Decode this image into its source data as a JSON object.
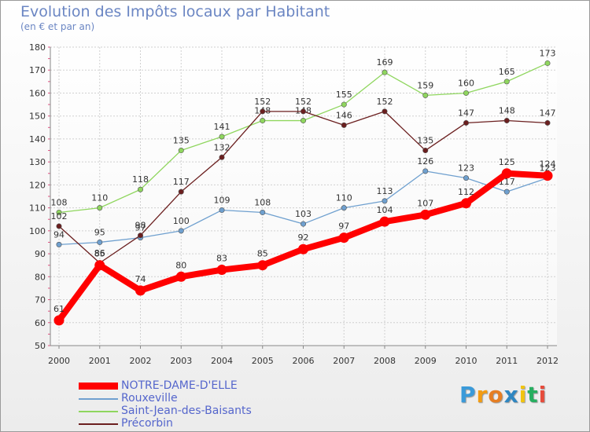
{
  "title": "Evolution des Impôts locaux par Habitant",
  "subtitle": "(en € et par an)",
  "logo": {
    "text": "Proxiti",
    "letters": [
      "P",
      "r",
      "o",
      "x",
      "i",
      "t",
      "i"
    ],
    "colors": [
      "#3a9ad9",
      "#f39c12",
      "#e67e22",
      "#2e86c1",
      "#f1c40f",
      "#27ae60",
      "#e74c3c"
    ]
  },
  "chart_data": {
    "type": "line",
    "title": "Evolution des Impôts locaux par Habitant",
    "subtitle": "(en € et par an)",
    "x": [
      "2000",
      "2001",
      "2002",
      "2003",
      "2004",
      "2005",
      "2006",
      "2007",
      "2008",
      "2009",
      "2010",
      "2011",
      "2012"
    ],
    "ylim": [
      50,
      180
    ],
    "yticks": [
      50,
      60,
      70,
      80,
      90,
      100,
      110,
      120,
      130,
      140,
      150,
      160,
      170,
      180
    ],
    "legend_position": "bottom-left",
    "series": [
      {
        "name": "NOTRE-DAME-D'ELLE",
        "color": "#ff0000",
        "bold": true,
        "values": [
          61,
          85,
          74,
          80,
          83,
          85,
          92,
          97,
          104,
          107,
          112,
          125,
          124
        ]
      },
      {
        "name": "Rouxeville",
        "color": "#6fa0cf",
        "bold": false,
        "values": [
          94,
          95,
          97,
          100,
          109,
          108,
          103,
          110,
          113,
          126,
          123,
          117,
          123
        ]
      },
      {
        "name": "Saint-Jean-des-Baisants",
        "color": "#8fd65e",
        "bold": false,
        "values": [
          108,
          110,
          118,
          135,
          141,
          148,
          148,
          155,
          169,
          159,
          160,
          165,
          173
        ]
      },
      {
        "name": "Précorbin",
        "color": "#6b1f1f",
        "bold": false,
        "values": [
          102,
          86,
          98,
          117,
          132,
          152,
          152,
          146,
          152,
          135,
          147,
          148,
          147
        ]
      }
    ]
  }
}
